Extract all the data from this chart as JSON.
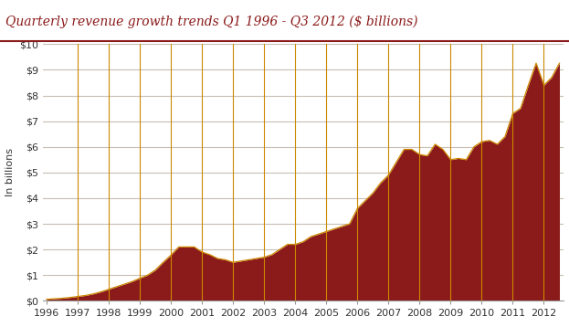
{
  "title_text": "Quarterly revenue growth trends Q1 1996 - Q3 2012 ($ billions)",
  "ylabel": "In billions",
  "ylim": [
    0,
    10
  ],
  "ytick_labels": [
    "$0",
    "$1",
    "$2",
    "$3",
    "$4",
    "$5",
    "$6",
    "$7",
    "$8",
    "$9",
    "$10"
  ],
  "ytick_values": [
    0,
    1,
    2,
    3,
    4,
    5,
    6,
    7,
    8,
    9,
    10
  ],
  "fill_color": "#8B1A1A",
  "line_color": "#CC8800",
  "grid_color": "#C8BEB4",
  "title_color": "#8B1A1A",
  "ylabel_color": "#333333",
  "title_line_color": "#8B1A1A",
  "background_color": "#FFFFFF",
  "values": [
    0.06,
    0.08,
    0.1,
    0.13,
    0.17,
    0.21,
    0.27,
    0.35,
    0.45,
    0.55,
    0.65,
    0.75,
    0.88,
    1.0,
    1.2,
    1.5,
    1.78,
    2.1,
    2.1,
    2.1,
    1.9,
    1.8,
    1.65,
    1.6,
    1.5,
    1.55,
    1.6,
    1.65,
    1.7,
    1.8,
    2.0,
    2.2,
    2.2,
    2.3,
    2.5,
    2.6,
    2.7,
    2.8,
    2.9,
    3.0,
    3.6,
    3.9,
    4.2,
    4.6,
    4.9,
    5.4,
    5.9,
    5.9,
    5.7,
    5.65,
    6.1,
    5.9,
    5.5,
    5.55,
    5.5,
    6.0,
    6.2,
    6.25,
    6.1,
    6.4,
    7.3,
    7.5,
    8.4,
    9.26,
    8.4,
    8.7,
    9.26
  ],
  "xlabel_fontsize": 8,
  "ylabel_fontsize": 8,
  "title_fontsize": 10,
  "tick_label_color": "#333333"
}
